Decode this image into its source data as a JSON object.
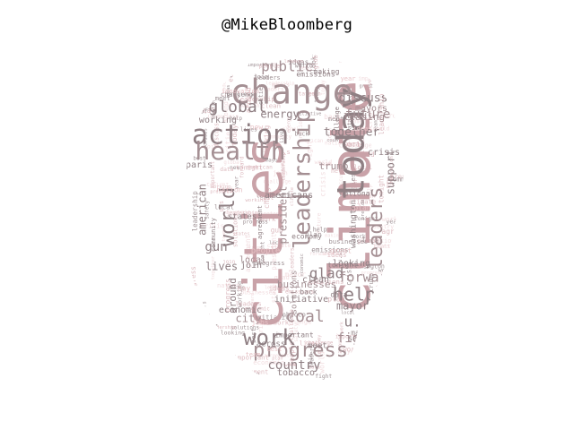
{
  "title": "@MikeBloomberg",
  "colors": {
    "background": "#ffffff",
    "palette": [
      "#a48f93",
      "#c9a2a8",
      "#e7c2c6",
      "#b48a90",
      "#8f7f83",
      "#d8b0b6",
      "#f0d8db"
    ]
  },
  "words": [
    "climate",
    "cities",
    "today",
    "change",
    "action",
    "health",
    "leadership",
    "world",
    "leaders",
    "work",
    "progress",
    "help",
    "global",
    "public",
    "country",
    "coal",
    "glad",
    "forward",
    "u.s",
    "fight",
    "mayor",
    "city",
    "future",
    "energy",
    "support",
    "together",
    "businesses",
    "president",
    "american",
    "americans",
    "trump",
    "discuss",
    "leading",
    "gun",
    "lives",
    "economic",
    "local",
    "join",
    "tobacco",
    "paris",
    "washington",
    "clean",
    "initiative",
    "solutions",
    "crisis",
    "states",
    "mayors",
    "working",
    "meet",
    "safety",
    "across",
    "around",
    "looking",
    "emissions",
    "national",
    "people",
    "making",
    "tonight",
    "back",
    "agreement",
    "challenge",
    "data",
    "economy",
    "new",
    "day",
    "great",
    "jobs",
    "community",
    "important",
    "nation",
    "plan",
    "innovation",
    "best",
    "team",
    "ideas",
    "year"
  ]
}
